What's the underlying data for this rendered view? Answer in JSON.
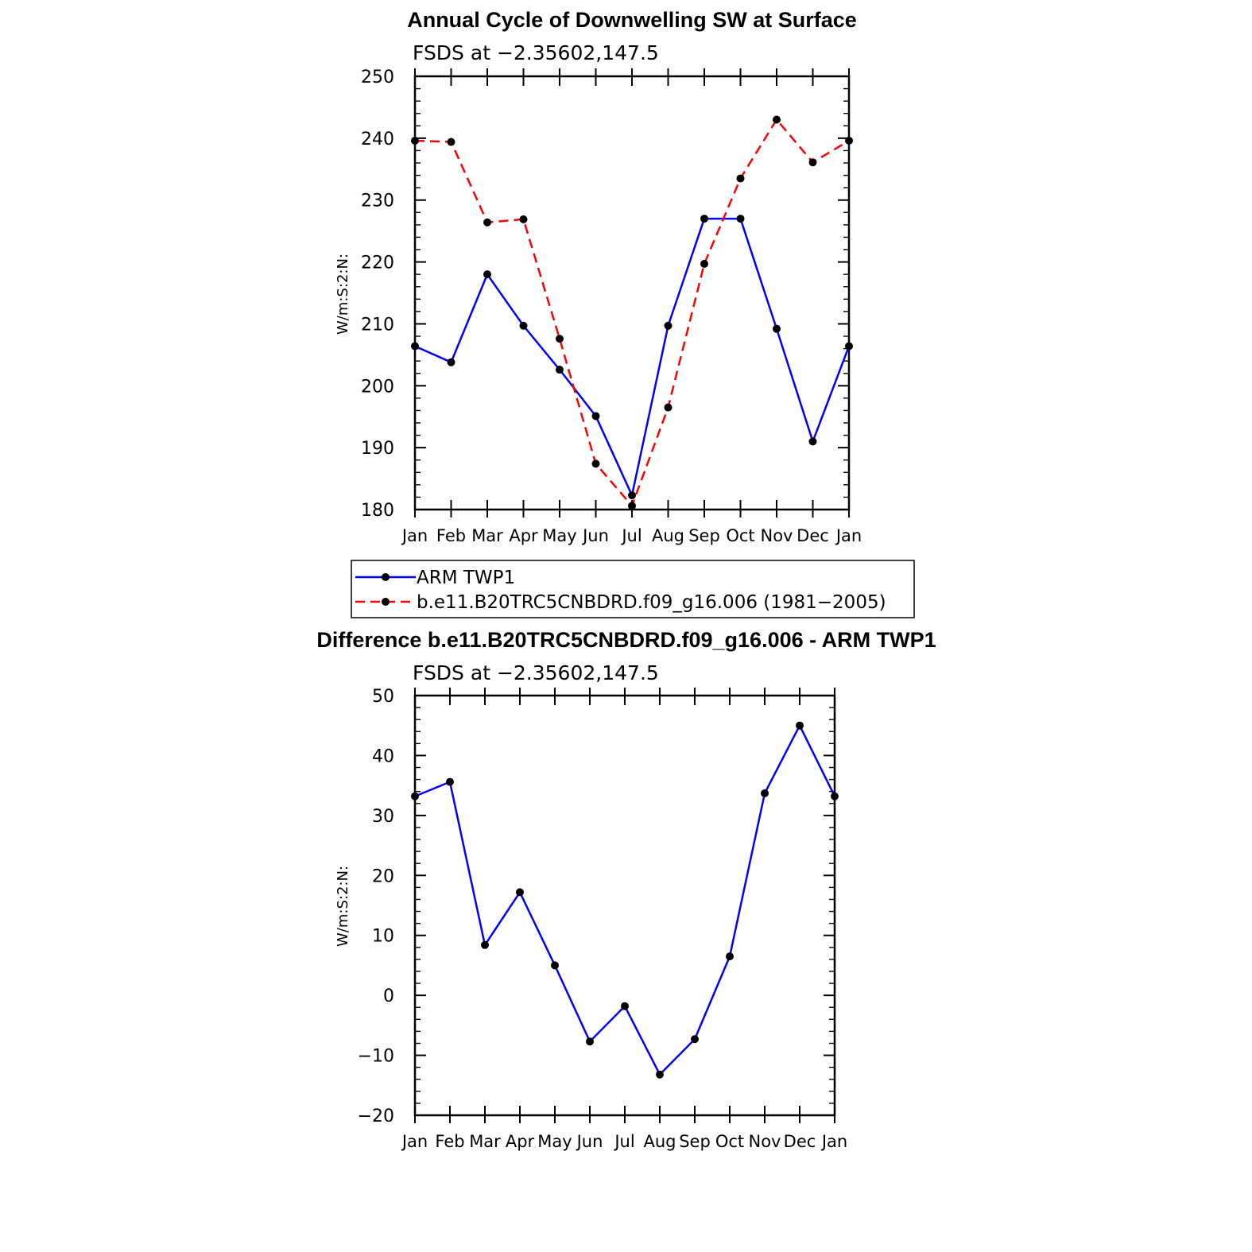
{
  "chart_data": [
    {
      "type": "line",
      "title": "Annual Cycle of Downwelling SW at Surface",
      "subtitle": "FSDS at −2.35602,147.5",
      "xlabel": "",
      "ylabel": "W/m:S:2:N:",
      "categories": [
        "Jan",
        "Feb",
        "Mar",
        "Apr",
        "May",
        "Jun",
        "Jul",
        "Aug",
        "Sep",
        "Oct",
        "Nov",
        "Dec",
        "Jan"
      ],
      "ylim": [
        180,
        250
      ],
      "yticks": [
        "180",
        "190",
        "200",
        "210",
        "220",
        "230",
        "240",
        "250"
      ],
      "series": [
        {
          "name": "ARM TWP1",
          "color": "#0000ff",
          "dash": "solid",
          "values": [
            206.4,
            203.8,
            218.0,
            209.7,
            202.6,
            195.1,
            182.3,
            209.7,
            227.0,
            227.0,
            209.2,
            191.0,
            206.4
          ]
        },
        {
          "name": "b.e11.B20TRC5CNBDRD.f09_g16.006 (1981−2005)",
          "color": "#ff0000",
          "dash": "dashed",
          "values": [
            239.6,
            239.4,
            226.4,
            226.9,
            207.6,
            187.4,
            180.6,
            196.5,
            219.7,
            233.5,
            243.0,
            236.1,
            239.6
          ]
        }
      ],
      "legend": {
        "position": "bottom",
        "entries": [
          "ARM TWP1",
          "b.e11.B20TRC5CNBDRD.f09_g16.006 (1981−2005)"
        ]
      }
    },
    {
      "type": "line",
      "title": "Difference b.e11.B20TRC5CNBDRD.f09_g16.006 - ARM TWP1",
      "subtitle": "FSDS at −2.35602,147.5",
      "xlabel": "",
      "ylabel": "W/m:S:2:N:",
      "categories": [
        "Jan",
        "Feb",
        "Mar",
        "Apr",
        "May",
        "Jun",
        "Jul",
        "Aug",
        "Sep",
        "Oct",
        "Nov",
        "Dec",
        "Jan"
      ],
      "ylim": [
        -20,
        50
      ],
      "yticks": [
        "−20",
        "−10",
        "0",
        "10",
        "20",
        "30",
        "40",
        "50"
      ],
      "series": [
        {
          "name": "Difference",
          "color": "#0000ff",
          "dash": "solid",
          "values": [
            33.2,
            35.6,
            8.4,
            17.2,
            5.0,
            -7.7,
            -1.8,
            -13.2,
            -7.3,
            6.5,
            33.7,
            45.0,
            33.2
          ]
        }
      ]
    }
  ]
}
